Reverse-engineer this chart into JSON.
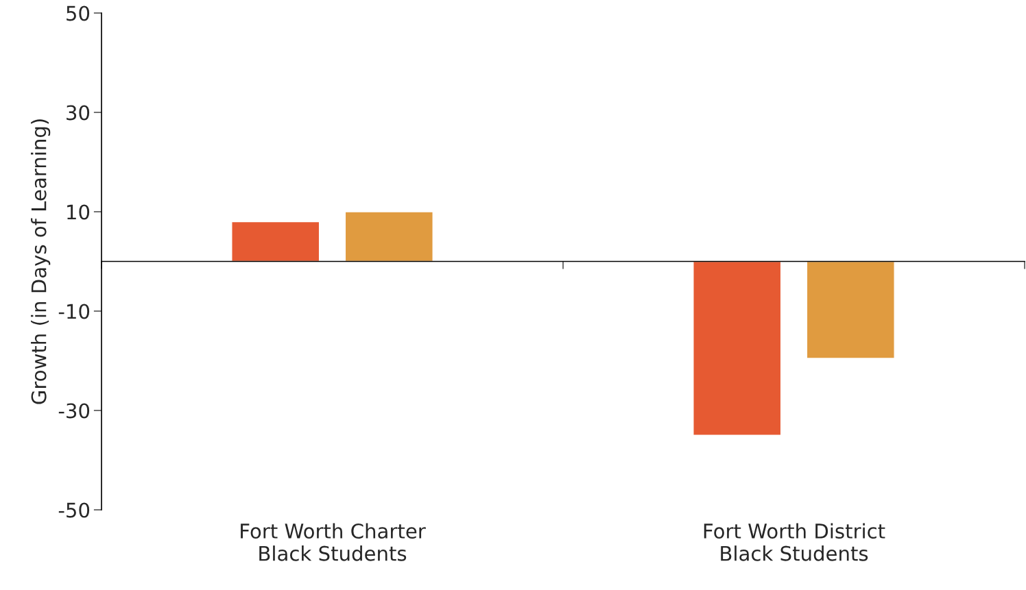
{
  "chart_data": {
    "type": "bar",
    "ylabel": "Growth (in Days of Learning)",
    "categories": [
      "Fort Worth Charter\nBlack Students",
      "Fort Worth District\nBlack Students"
    ],
    "series": [
      {
        "color": "#e65a32",
        "values": [
          8,
          -35
        ]
      },
      {
        "color": "#e09b40",
        "values": [
          10,
          -19.5
        ]
      }
    ],
    "ylim": [
      -50,
      50
    ],
    "yticks": [
      -50,
      -30,
      -10,
      10,
      30,
      50
    ],
    "grid": false,
    "legend": false
  }
}
